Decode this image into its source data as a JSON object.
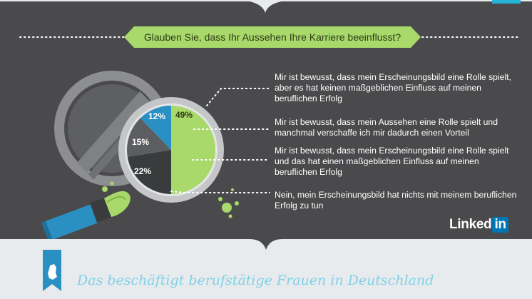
{
  "question": "Glauben Sie, dass Ihr Aussehen Ihre Karriere beeinflusst?",
  "chart_data": {
    "type": "pie",
    "title": "",
    "slices": [
      {
        "value": 49,
        "label": "49%",
        "color": "#a8d96a",
        "legend": "Mir ist bewusst, dass mein Erscheinungsbild eine Rolle spielt, aber es hat keinen maßgeblichen Einfluss auf meinen beruflichen Erfolg"
      },
      {
        "value": 22,
        "label": "22%",
        "color": "#3a3b3d",
        "legend": "Nein, mein Erscheinungsbild hat nichts mit meinem beruflichen Erfolg zu tun"
      },
      {
        "value": 15,
        "label": "15%",
        "color": "#5c5d60",
        "legend": "Mir ist bewusst, dass mein Erscheinungsbild eine Rolle spielt und das hat einen maßgeblichen Einfluss auf meinen beruflichen Erfolg"
      },
      {
        "value": 12,
        "label": "12%",
        "color": "#2a8fc2",
        "legend": "Mir ist bewusst, dass mein Aussehen eine Rolle spielt und manchmal verschaffe ich mir dadurch einen Vorteil"
      }
    ]
  },
  "legend": [
    "Mir ist bewusst, dass mein Erscheinungsbild eine Rolle spielt, aber es hat keinen maßgeblichen Einfluss auf meinen beruflichen Erfolg",
    "Mir ist bewusst, dass mein Aussehen eine Rolle spielt und manchmal verschaffe ich mir dadurch einen Vorteil",
    "Mir ist bewusst, dass mein Erscheinungsbild eine Rolle spielt und das hat einen maßgeblichen Einfluss auf meinen beruflichen Erfolg",
    "Nein, mein Erscheinungsbild hat nichts mit meinem beruflichen Erfolg zu tun"
  ],
  "brand": {
    "text": "Linked",
    "box": "in",
    "color": "#0077b5"
  },
  "footer_title": "Das beschäftigt berufstätige Frauen in Deutschland",
  "colors": {
    "background": "#4a4a4c",
    "accent_green": "#a8d96a",
    "accent_blue": "#2a8fc2",
    "footer_band": "#e7ebee"
  }
}
